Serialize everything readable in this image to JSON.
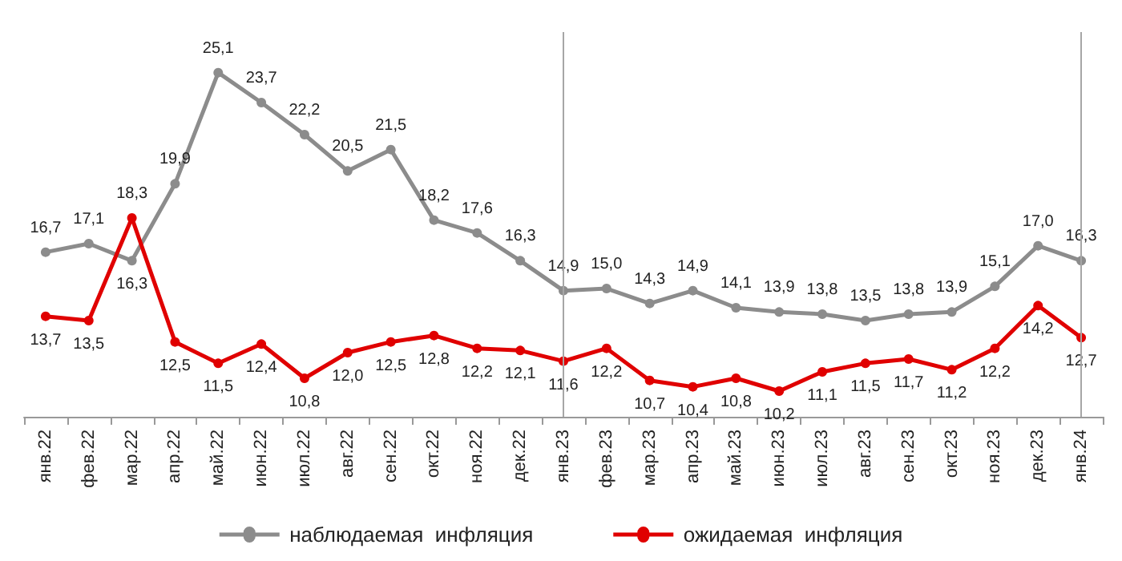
{
  "chart_data": {
    "type": "line",
    "categories": [
      "янв.22",
      "фев.22",
      "мар.22",
      "апр.22",
      "май.22",
      "июн.22",
      "июл.22",
      "авг.22",
      "сен.22",
      "окт.22",
      "ноя.22",
      "дек.22",
      "янв.23",
      "фев.23",
      "мар.23",
      "апр.23",
      "май.23",
      "июн.23",
      "июл.23",
      "авг.23",
      "сен.23",
      "окт.23",
      "ноя.23",
      "дек.23",
      "янв.24"
    ],
    "series": [
      {
        "name": "наблюдаемая  инфляция",
        "color": "#8c8c8c",
        "values": [
          16.7,
          17.1,
          16.3,
          19.9,
          25.1,
          23.7,
          22.2,
          20.5,
          21.5,
          18.2,
          17.6,
          16.3,
          14.9,
          15.0,
          14.3,
          14.9,
          14.1,
          13.9,
          13.8,
          13.5,
          13.8,
          13.9,
          15.1,
          17.0,
          16.3
        ],
        "value_labels": [
          "16,7",
          "17,1",
          "16,3",
          "19,9",
          "25,1",
          "23,7",
          "22,2",
          "20,5",
          "21,5",
          "18,2",
          "17,6",
          "16,3",
          "14,9",
          "15,0",
          "14,3",
          "14,9",
          "14,1",
          "13,9",
          "13,8",
          "13,5",
          "13,8",
          "13,9",
          "15,1",
          "17,0",
          "16,3"
        ]
      },
      {
        "name": "ожидаемая  инфляция",
        "color": "#e00000",
        "values": [
          13.7,
          13.5,
          18.3,
          12.5,
          11.5,
          12.4,
          10.8,
          12.0,
          12.5,
          12.8,
          12.2,
          12.1,
          11.6,
          12.2,
          10.7,
          10.4,
          10.8,
          10.2,
          11.1,
          11.5,
          11.7,
          11.2,
          12.2,
          14.2,
          12.7
        ],
        "value_labels": [
          "13,7",
          "13,5",
          "18,3",
          "12,5",
          "11,5",
          "12,4",
          "10,8",
          "12,0",
          "12,5",
          "12,8",
          "12,2",
          "12,1",
          "11,6",
          "12,2",
          "10,7",
          "10,4",
          "10,8",
          "10,2",
          "11,1",
          "11,5",
          "11,7",
          "11,2",
          "12,2",
          "14,2",
          "12,7"
        ]
      }
    ],
    "ref_lines": [
      {
        "axis": "x",
        "value": "янв.23",
        "color": "#a6a6a6"
      },
      {
        "axis": "x",
        "value": "янв.24",
        "color": "#a6a6a6"
      }
    ],
    "legend": "bottom",
    "marker": "circle",
    "line_style": "solid",
    "grid": false
  }
}
